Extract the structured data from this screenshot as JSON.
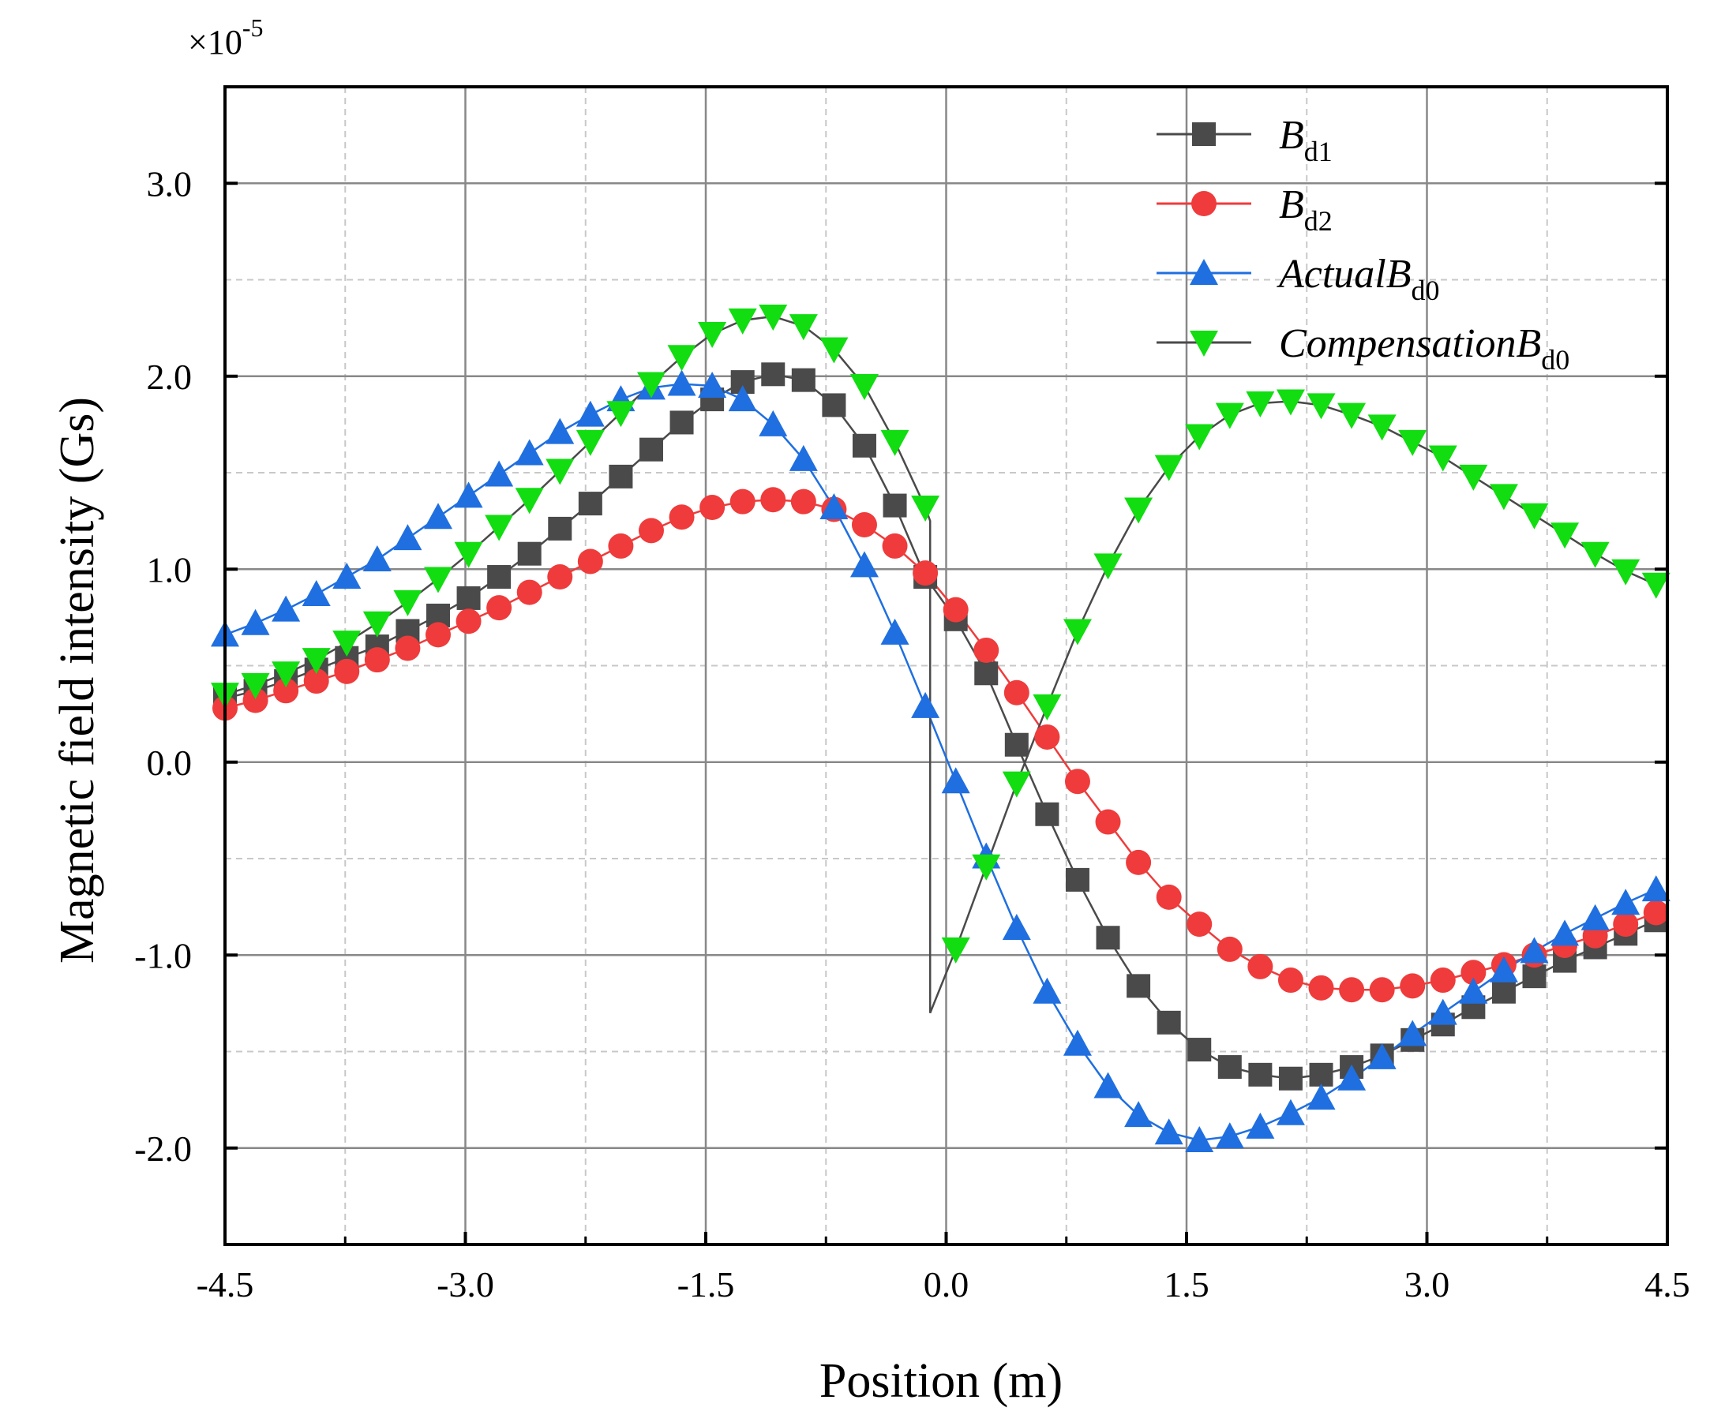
{
  "chart_data": {
    "type": "line",
    "title": "",
    "xlabel": "Position (m)",
    "ylabel": "Magnetic field intensity (Gs)",
    "y_multiplier": "×10",
    "y_exponent": "-5",
    "xlim": [
      -4.5,
      4.5
    ],
    "ylim": [
      -2.5,
      3.5
    ],
    "xticks": [
      -4.5,
      -3.0,
      -1.5,
      0.0,
      1.5,
      3.0,
      4.5
    ],
    "xtick_labels": [
      "-4.5",
      "-3.0",
      "-1.5",
      "0.0",
      "1.5",
      "3.0",
      "4.5"
    ],
    "yticks": [
      -2.0,
      -1.0,
      0.0,
      1.0,
      2.0,
      3.0
    ],
    "ytick_labels": [
      "-2.0",
      "-1.0",
      "0.0",
      "1.0",
      "2.0",
      "3.0"
    ],
    "grid": true,
    "legend_position": "top-right",
    "series": [
      {
        "name": "Bd1",
        "legend_main": "B",
        "legend_sub": "d1",
        "color": "#4a4a4a",
        "line_color": "#4a4a4a",
        "marker": "square",
        "x": [
          -4.5,
          -4.31,
          -4.12,
          -3.93,
          -3.74,
          -3.55,
          -3.36,
          -3.17,
          -2.98,
          -2.79,
          -2.6,
          -2.41,
          -2.22,
          -2.03,
          -1.84,
          -1.65,
          -1.46,
          -1.27,
          -1.08,
          -0.89,
          -0.7,
          -0.51,
          -0.32,
          -0.13,
          0.06,
          0.25,
          0.44,
          0.63,
          0.82,
          1.01,
          1.2,
          1.39,
          1.58,
          1.77,
          1.96,
          2.15,
          2.34,
          2.53,
          2.72,
          2.91,
          3.1,
          3.29,
          3.48,
          3.67,
          3.86,
          4.05,
          4.24,
          4.43
        ],
        "values": [
          0.33,
          0.37,
          0.42,
          0.48,
          0.54,
          0.6,
          0.68,
          0.76,
          0.85,
          0.96,
          1.08,
          1.21,
          1.34,
          1.48,
          1.62,
          1.76,
          1.88,
          1.97,
          2.01,
          1.98,
          1.85,
          1.64,
          1.33,
          0.96,
          0.74,
          0.46,
          0.09,
          -0.27,
          -0.61,
          -0.91,
          -1.16,
          -1.35,
          -1.49,
          -1.58,
          -1.62,
          -1.64,
          -1.62,
          -1.58,
          -1.52,
          -1.44,
          -1.36,
          -1.27,
          -1.19,
          -1.11,
          -1.03,
          -0.96,
          -0.89,
          -0.82
        ]
      },
      {
        "name": "Bd2",
        "legend_main": "B",
        "legend_sub": "d2",
        "color": "#ef3b3b",
        "line_color": "#ef3b3b",
        "marker": "circle",
        "x": [
          -4.5,
          -4.31,
          -4.12,
          -3.93,
          -3.74,
          -3.55,
          -3.36,
          -3.17,
          -2.98,
          -2.79,
          -2.6,
          -2.41,
          -2.22,
          -2.03,
          -1.84,
          -1.65,
          -1.46,
          -1.27,
          -1.08,
          -0.89,
          -0.7,
          -0.51,
          -0.32,
          -0.13,
          0.06,
          0.25,
          0.44,
          0.63,
          0.82,
          1.01,
          1.2,
          1.39,
          1.58,
          1.77,
          1.96,
          2.15,
          2.34,
          2.53,
          2.72,
          2.91,
          3.1,
          3.29,
          3.48,
          3.67,
          3.86,
          4.05,
          4.24,
          4.43
        ],
        "values": [
          0.28,
          0.32,
          0.37,
          0.42,
          0.47,
          0.53,
          0.59,
          0.66,
          0.73,
          0.8,
          0.88,
          0.96,
          1.04,
          1.12,
          1.2,
          1.27,
          1.32,
          1.35,
          1.36,
          1.35,
          1.31,
          1.23,
          1.12,
          0.98,
          0.79,
          0.58,
          0.36,
          0.13,
          -0.1,
          -0.31,
          -0.52,
          -0.7,
          -0.84,
          -0.97,
          -1.06,
          -1.13,
          -1.17,
          -1.18,
          -1.18,
          -1.16,
          -1.13,
          -1.09,
          -1.05,
          -1.0,
          -0.95,
          -0.9,
          -0.84,
          -0.78
        ]
      },
      {
        "name": "ActualBd0",
        "legend_main": "ActualB",
        "legend_sub": "d0",
        "color": "#1f6fe0",
        "line_color": "#1f6fe0",
        "marker": "triangle-up",
        "x": [
          -4.5,
          -4.31,
          -4.12,
          -3.93,
          -3.74,
          -3.55,
          -3.36,
          -3.17,
          -2.98,
          -2.79,
          -2.6,
          -2.41,
          -2.22,
          -2.03,
          -1.84,
          -1.65,
          -1.46,
          -1.27,
          -1.08,
          -0.89,
          -0.7,
          -0.51,
          -0.32,
          -0.13,
          0.06,
          0.25,
          0.44,
          0.63,
          0.82,
          1.01,
          1.2,
          1.39,
          1.58,
          1.77,
          1.96,
          2.15,
          2.34,
          2.53,
          2.72,
          2.91,
          3.1,
          3.29,
          3.48,
          3.67,
          3.86,
          4.05,
          4.24,
          4.43
        ],
        "values": [
          0.66,
          0.72,
          0.79,
          0.87,
          0.96,
          1.05,
          1.16,
          1.27,
          1.38,
          1.49,
          1.6,
          1.71,
          1.8,
          1.88,
          1.94,
          1.96,
          1.95,
          1.88,
          1.75,
          1.57,
          1.32,
          1.02,
          0.67,
          0.29,
          -0.1,
          -0.49,
          -0.86,
          -1.19,
          -1.46,
          -1.68,
          -1.83,
          -1.92,
          -1.96,
          -1.94,
          -1.89,
          -1.82,
          -1.74,
          -1.64,
          -1.53,
          -1.41,
          -1.3,
          -1.19,
          -1.08,
          -0.98,
          -0.89,
          -0.81,
          -0.73,
          -0.66
        ]
      },
      {
        "name": "CompensationBd0",
        "legend_main": "CompensationB",
        "legend_sub": "d0",
        "color": "#11dd11",
        "line_color": "#4a4a4a",
        "marker": "triangle-down",
        "x": [
          -4.5,
          -4.31,
          -4.12,
          -3.93,
          -3.74,
          -3.55,
          -3.36,
          -3.17,
          -2.98,
          -2.79,
          -2.6,
          -2.41,
          -2.22,
          -2.03,
          -1.84,
          -1.65,
          -1.46,
          -1.27,
          -1.08,
          -0.89,
          -0.7,
          -0.51,
          -0.32,
          -0.13,
          0.06,
          0.25,
          0.44,
          0.63,
          0.82,
          1.01,
          1.2,
          1.39,
          1.58,
          1.77,
          1.96,
          2.15,
          2.34,
          2.53,
          2.72,
          2.91,
          3.1,
          3.29,
          3.48,
          3.67,
          3.86,
          4.05,
          4.24,
          4.43
        ],
        "values": [
          0.35,
          0.4,
          0.46,
          0.53,
          0.62,
          0.72,
          0.83,
          0.95,
          1.08,
          1.22,
          1.36,
          1.51,
          1.66,
          1.81,
          1.96,
          2.1,
          2.22,
          2.29,
          2.31,
          2.26,
          2.14,
          1.95,
          1.66,
          1.32,
          -0.97,
          -0.54,
          -0.11,
          0.29,
          0.68,
          1.02,
          1.31,
          1.53,
          1.69,
          1.8,
          1.86,
          1.87,
          1.85,
          1.8,
          1.74,
          1.66,
          1.58,
          1.48,
          1.38,
          1.28,
          1.18,
          1.08,
          0.99,
          0.92
        ]
      }
    ],
    "compensation_curve_note": "Compensation line jumps from +1.3 down to -1.3 near x=-0.10 then rises linearly",
    "compensation_jump": {
      "x": -0.1,
      "y_from": 1.25,
      "y_to": -1.3
    }
  }
}
